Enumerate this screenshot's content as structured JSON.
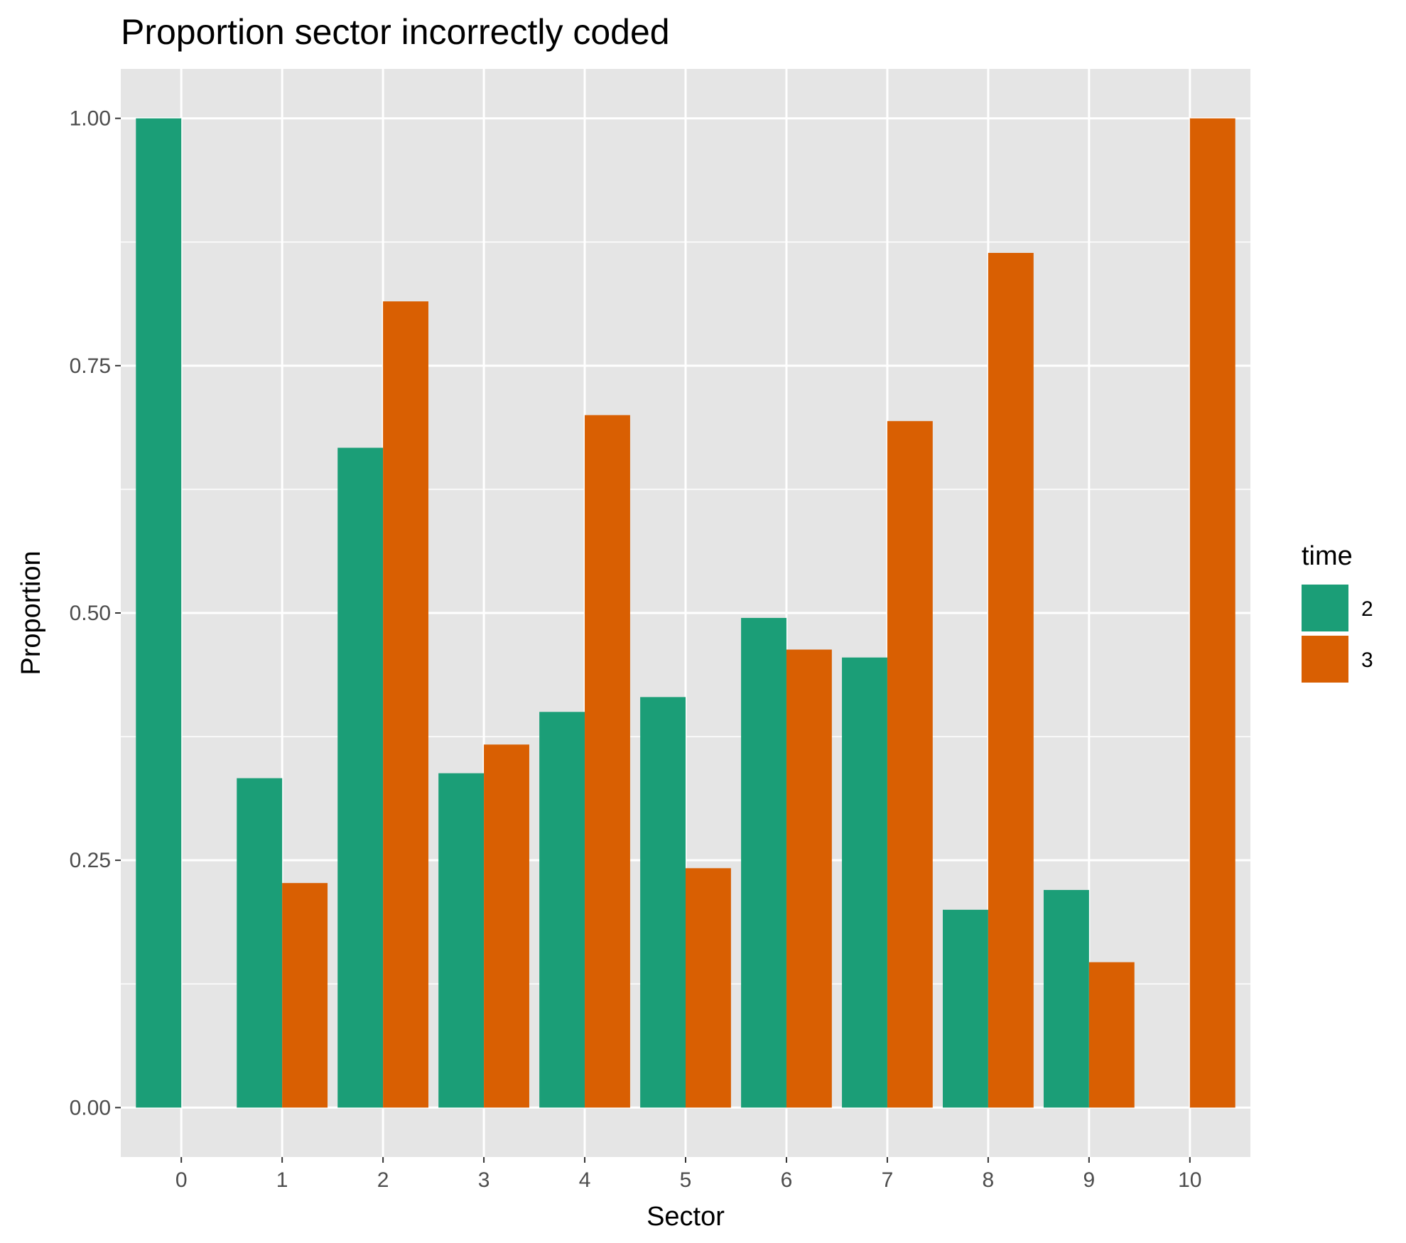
{
  "chart_data": {
    "type": "bar",
    "title": "Proportion sector incorrectly coded",
    "xlabel": "Sector",
    "ylabel": "Proportion",
    "categories": [
      "0",
      "1",
      "2",
      "3",
      "4",
      "5",
      "6",
      "7",
      "8",
      "9",
      "10"
    ],
    "yticks": [
      "0.00",
      "0.25",
      "0.50",
      "0.75",
      "1.00"
    ],
    "ylim": [
      -0.05,
      1.05
    ],
    "grid": true,
    "legend": {
      "title": "time",
      "position": "right",
      "entries": [
        "2",
        "3"
      ]
    },
    "series": [
      {
        "name": "2",
        "color": "#1b9e77",
        "values": [
          1.0,
          0.333,
          0.667,
          0.338,
          0.4,
          0.415,
          0.495,
          0.455,
          0.2,
          0.22,
          null
        ]
      },
      {
        "name": "3",
        "color": "#d95f02",
        "values": [
          null,
          0.227,
          0.815,
          0.367,
          0.7,
          0.242,
          0.463,
          0.694,
          0.864,
          0.147,
          1.0
        ]
      }
    ],
    "colors": {
      "panel_background": "#e5e5e5",
      "grid_line": "#ffffff",
      "series_2": "#1b9e77",
      "series_3": "#d95f02"
    }
  }
}
